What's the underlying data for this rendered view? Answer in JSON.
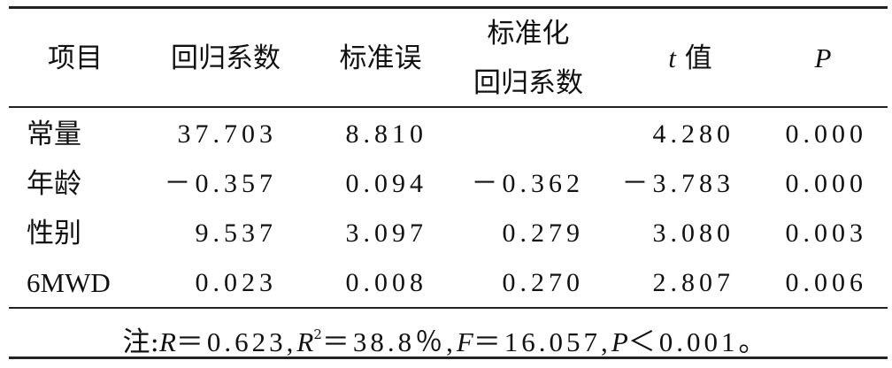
{
  "table": {
    "headers": [
      "项目",
      "回归系数",
      "标准误",
      [
        "标准化",
        "回归系数"
      ],
      [
        "t",
        "值"
      ],
      "P"
    ],
    "rows": [
      [
        "常量",
        "37.703",
        "8.810",
        null,
        "4.280",
        "0.000"
      ],
      [
        "年龄",
        "－0.357",
        "0.094",
        "－0.362",
        "－3.783",
        "0.000"
      ],
      [
        "性别",
        "9.537",
        "3.097",
        "0.279",
        "3.080",
        "0.003"
      ],
      [
        "6MWD",
        "0.023",
        "0.008",
        "0.270",
        "2.807",
        "0.006"
      ]
    ],
    "note": [
      "注:",
      "R",
      "＝0.623,",
      "R",
      "2",
      "＝38.8％,",
      "F",
      "＝16.057,",
      "P",
      "＜0.001。"
    ]
  }
}
